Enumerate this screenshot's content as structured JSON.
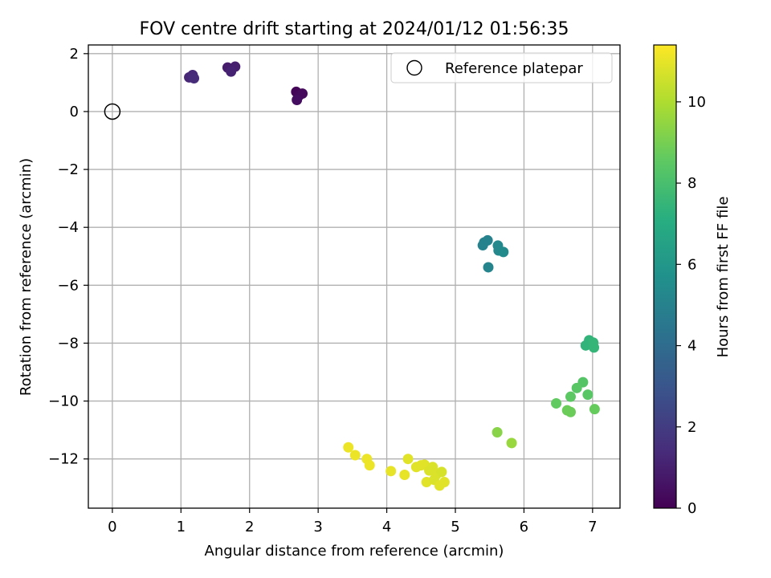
{
  "chart_data": {
    "type": "scatter",
    "title": "FOV centre drift starting at 2024/01/12 01:56:35",
    "xlabel": "Angular distance from reference (arcmin)",
    "ylabel": "Rotation from reference (arcmin)",
    "xlim": [
      -0.35,
      7.4
    ],
    "ylim": [
      -13.7,
      2.3
    ],
    "xticks": [
      0,
      1,
      2,
      3,
      4,
      5,
      6,
      7
    ],
    "yticks": [
      2,
      0,
      -2,
      -4,
      -6,
      -8,
      -10,
      -12
    ],
    "grid": true,
    "legend": {
      "placement": "top-right",
      "label": "Reference platepar"
    },
    "reference": {
      "x": 0,
      "y": 0
    },
    "colorbar": {
      "label": "Hours from first FF file",
      "range": [
        0,
        11.4
      ],
      "ticks": [
        0,
        2,
        4,
        6,
        8,
        10
      ],
      "colormap": "viridis"
    },
    "points": [
      {
        "x": 2.68,
        "y": 0.68,
        "t": 0.1
      },
      {
        "x": 2.72,
        "y": 0.55,
        "t": 0.2
      },
      {
        "x": 2.77,
        "y": 0.62,
        "t": 0.3
      },
      {
        "x": 2.69,
        "y": 0.4,
        "t": 0.4
      },
      {
        "x": 1.68,
        "y": 1.52,
        "t": 0.9
      },
      {
        "x": 1.79,
        "y": 1.55,
        "t": 1.0
      },
      {
        "x": 1.73,
        "y": 1.38,
        "t": 1.1
      },
      {
        "x": 1.12,
        "y": 1.18,
        "t": 1.2
      },
      {
        "x": 1.17,
        "y": 1.26,
        "t": 1.3
      },
      {
        "x": 1.19,
        "y": 1.15,
        "t": 1.4
      },
      {
        "x": 5.4,
        "y": -4.62,
        "t": 5.0
      },
      {
        "x": 5.42,
        "y": -4.52,
        "t": 5.0
      },
      {
        "x": 5.47,
        "y": -4.45,
        "t": 5.0
      },
      {
        "x": 5.48,
        "y": -5.38,
        "t": 5.1
      },
      {
        "x": 5.62,
        "y": -4.63,
        "t": 5.3
      },
      {
        "x": 5.63,
        "y": -4.8,
        "t": 5.3
      },
      {
        "x": 5.7,
        "y": -4.85,
        "t": 5.4
      },
      {
        "x": 6.9,
        "y": -8.08,
        "t": 7.4
      },
      {
        "x": 6.95,
        "y": -7.9,
        "t": 7.4
      },
      {
        "x": 7.01,
        "y": -7.98,
        "t": 7.5
      },
      {
        "x": 7.02,
        "y": -8.15,
        "t": 7.5
      },
      {
        "x": 6.86,
        "y": -9.35,
        "t": 8.3
      },
      {
        "x": 6.77,
        "y": -9.55,
        "t": 8.4
      },
      {
        "x": 6.93,
        "y": -9.78,
        "t": 8.4
      },
      {
        "x": 6.68,
        "y": -9.85,
        "t": 8.5
      },
      {
        "x": 6.47,
        "y": -10.08,
        "t": 8.6
      },
      {
        "x": 6.63,
        "y": -10.32,
        "t": 8.8
      },
      {
        "x": 6.68,
        "y": -10.38,
        "t": 8.8
      },
      {
        "x": 7.03,
        "y": -10.28,
        "t": 8.7
      },
      {
        "x": 5.61,
        "y": -11.08,
        "t": 9.3
      },
      {
        "x": 5.82,
        "y": -11.45,
        "t": 9.6
      },
      {
        "x": 3.44,
        "y": -11.6,
        "t": 11.1
      },
      {
        "x": 3.54,
        "y": -11.87,
        "t": 11.1
      },
      {
        "x": 3.71,
        "y": -12.0,
        "t": 11.1
      },
      {
        "x": 3.75,
        "y": -12.22,
        "t": 11.1
      },
      {
        "x": 4.06,
        "y": -12.42,
        "t": 11.0
      },
      {
        "x": 4.26,
        "y": -12.55,
        "t": 11.0
      },
      {
        "x": 4.31,
        "y": -12.0,
        "t": 10.9
      },
      {
        "x": 4.43,
        "y": -12.28,
        "t": 10.9
      },
      {
        "x": 4.5,
        "y": -12.22,
        "t": 10.9
      },
      {
        "x": 4.55,
        "y": -12.2,
        "t": 10.9
      },
      {
        "x": 4.62,
        "y": -12.4,
        "t": 10.8
      },
      {
        "x": 4.58,
        "y": -12.8,
        "t": 10.9
      },
      {
        "x": 4.67,
        "y": -12.28,
        "t": 10.8
      },
      {
        "x": 4.69,
        "y": -12.72,
        "t": 10.8
      },
      {
        "x": 4.72,
        "y": -12.55,
        "t": 10.8
      },
      {
        "x": 4.77,
        "y": -12.92,
        "t": 10.9
      },
      {
        "x": 4.8,
        "y": -12.45,
        "t": 10.7
      },
      {
        "x": 4.84,
        "y": -12.8,
        "t": 10.9
      }
    ]
  }
}
